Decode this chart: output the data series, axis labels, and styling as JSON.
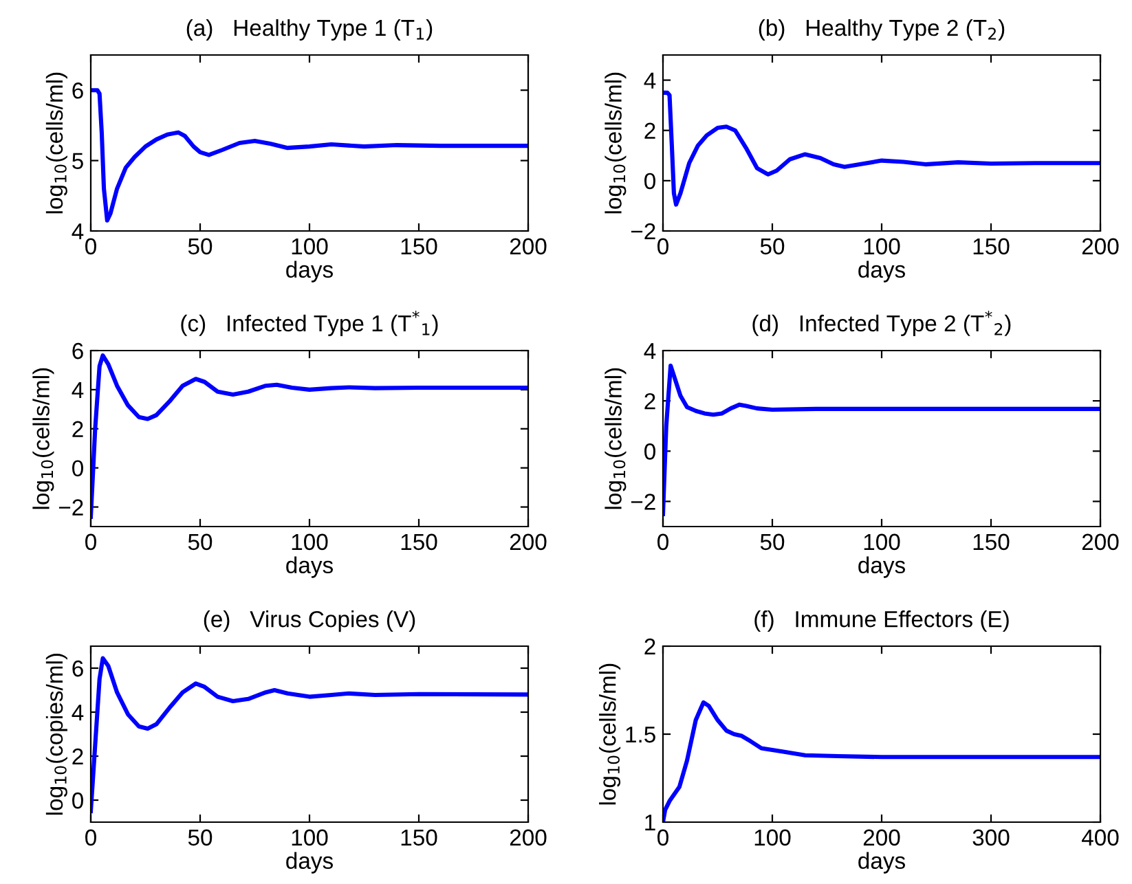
{
  "chart_data": [
    {
      "type": "line",
      "title": "(a)   Healthy Type 1 (T$_{1}$)",
      "xlabel": "days",
      "ylabel": "log$_{10}$(cells/ml)",
      "xlim": [
        0,
        200
      ],
      "xticks": [
        0,
        50,
        100,
        150,
        200
      ],
      "ylim": [
        4,
        6.5
      ],
      "yticks": [
        4,
        5,
        6
      ],
      "grid": false,
      "x": [
        0,
        3,
        4,
        5,
        6,
        7.5,
        9,
        12,
        16,
        20,
        25,
        30,
        35,
        40,
        43,
        47,
        50,
        54,
        60,
        68,
        75,
        82,
        90,
        100,
        110,
        125,
        140,
        160,
        200
      ],
      "series": [
        {
          "color": "#0000ff",
          "values": [
            6.0,
            6.0,
            5.95,
            5.4,
            4.6,
            4.15,
            4.25,
            4.6,
            4.9,
            5.05,
            5.2,
            5.3,
            5.37,
            5.4,
            5.35,
            5.2,
            5.12,
            5.08,
            5.15,
            5.25,
            5.28,
            5.24,
            5.18,
            5.2,
            5.23,
            5.2,
            5.22,
            5.21,
            5.21
          ]
        }
      ]
    },
    {
      "type": "line",
      "title": "(b)   Healthy Type 2 (T$_{2}$)",
      "xlabel": "days",
      "ylabel": "log$_{10}$(cells/ml)",
      "xlim": [
        0,
        200
      ],
      "xticks": [
        0,
        50,
        100,
        150,
        200
      ],
      "ylim": [
        -2,
        5
      ],
      "yticks": [
        -2,
        0,
        2,
        4
      ],
      "grid": false,
      "x": [
        0,
        2,
        3,
        4,
        5,
        6,
        8,
        12,
        16,
        20,
        25,
        29,
        33,
        38,
        43,
        48,
        52,
        58,
        65,
        72,
        78,
        83,
        90,
        100,
        110,
        120,
        135,
        150,
        170,
        200
      ],
      "series": [
        {
          "color": "#0000ff",
          "values": [
            3.5,
            3.5,
            3.4,
            1.5,
            -0.5,
            -0.95,
            -0.5,
            0.7,
            1.4,
            1.8,
            2.1,
            2.15,
            2.0,
            1.3,
            0.5,
            0.25,
            0.4,
            0.85,
            1.05,
            0.9,
            0.65,
            0.55,
            0.65,
            0.8,
            0.75,
            0.65,
            0.73,
            0.68,
            0.7,
            0.7
          ]
        }
      ]
    },
    {
      "type": "line",
      "title": "(c)   Infected Type 1 (T$^{*}$$_{1}$)",
      "xlabel": "days",
      "ylabel": "log$_{10}$(cells/ml)",
      "xlim": [
        0,
        200
      ],
      "xticks": [
        0,
        50,
        100,
        150,
        200
      ],
      "ylim": [
        -3,
        6
      ],
      "yticks": [
        -2,
        0,
        2,
        4,
        6
      ],
      "grid": false,
      "x": [
        0,
        2,
        4,
        5.5,
        8,
        12,
        17,
        22,
        26,
        30,
        36,
        42,
        48,
        52,
        58,
        65,
        72,
        80,
        85,
        92,
        100,
        110,
        118,
        130,
        150,
        200
      ],
      "series": [
        {
          "color": "#0000ff",
          "values": [
            -2.5,
            2,
            5.2,
            5.75,
            5.3,
            4.2,
            3.2,
            2.6,
            2.5,
            2.7,
            3.4,
            4.2,
            4.55,
            4.4,
            3.9,
            3.75,
            3.9,
            4.2,
            4.25,
            4.1,
            4.0,
            4.08,
            4.12,
            4.08,
            4.1,
            4.1
          ]
        }
      ]
    },
    {
      "type": "line",
      "title": "(d)   Infected Type 2 (T$^{*}$$_{2}$)",
      "xlabel": "days",
      "ylabel": "log$_{10}$(cells/ml)",
      "xlim": [
        0,
        200
      ],
      "xticks": [
        0,
        50,
        100,
        150,
        200
      ],
      "ylim": [
        -3,
        4
      ],
      "yticks": [
        -2,
        0,
        2,
        4
      ],
      "grid": false,
      "x": [
        0,
        1.5,
        3.5,
        5,
        8,
        11,
        15,
        19,
        23,
        27,
        31,
        35,
        38,
        43,
        50,
        70,
        200
      ],
      "series": [
        {
          "color": "#0000ff",
          "values": [
            -2.5,
            1,
            3.4,
            3.0,
            2.2,
            1.75,
            1.6,
            1.5,
            1.45,
            1.5,
            1.7,
            1.85,
            1.8,
            1.7,
            1.65,
            1.68,
            1.68
          ]
        }
      ]
    },
    {
      "type": "line",
      "title": "(e)   Virus Copies (V)",
      "xlabel": "days",
      "ylabel": "log$_{10}$(copies/ml)",
      "xlim": [
        0,
        200
      ],
      "xticks": [
        0,
        50,
        100,
        150,
        200
      ],
      "ylim": [
        -1,
        7
      ],
      "yticks": [
        0,
        2,
        4,
        6
      ],
      "grid": false,
      "x": [
        0,
        2,
        4,
        5.5,
        8,
        12,
        17,
        22,
        26,
        30,
        36,
        42,
        48,
        52,
        58,
        65,
        72,
        80,
        84,
        90,
        100,
        110,
        118,
        130,
        150,
        200
      ],
      "series": [
        {
          "color": "#0000ff",
          "values": [
            -0.5,
            2.5,
            5.5,
            6.45,
            6.1,
            4.9,
            3.9,
            3.35,
            3.25,
            3.45,
            4.2,
            4.9,
            5.3,
            5.15,
            4.7,
            4.5,
            4.6,
            4.9,
            5.0,
            4.85,
            4.7,
            4.78,
            4.85,
            4.78,
            4.82,
            4.8
          ]
        }
      ]
    },
    {
      "type": "line",
      "title": "(f)   Immune Effectors (E)",
      "xlabel": "days",
      "ylabel": "log$_{10}$(cells/ml)",
      "xlim": [
        0,
        400
      ],
      "xticks": [
        0,
        100,
        200,
        300,
        400
      ],
      "ylim": [
        1,
        2
      ],
      "yticks": [
        1,
        1.5,
        2
      ],
      "grid": false,
      "x": [
        0,
        2,
        6,
        15,
        22,
        30,
        37,
        42,
        50,
        58,
        65,
        72,
        80,
        90,
        110,
        130,
        160,
        200,
        400
      ],
      "series": [
        {
          "color": "#0000ff",
          "values": [
            1.0,
            1.07,
            1.12,
            1.2,
            1.35,
            1.58,
            1.68,
            1.66,
            1.58,
            1.52,
            1.5,
            1.49,
            1.46,
            1.42,
            1.4,
            1.38,
            1.375,
            1.37,
            1.37
          ]
        }
      ]
    }
  ]
}
